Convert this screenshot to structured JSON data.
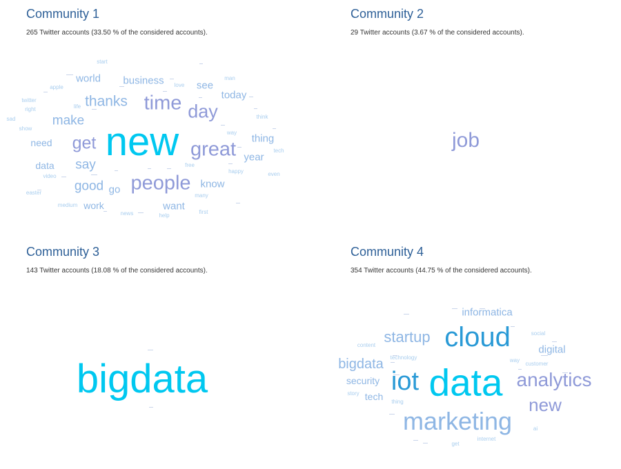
{
  "communities": [
    {
      "title": "Community 1",
      "stats": "265 Twitter accounts (33.50 % of the considered accounts).",
      "words": [
        {
          "t": "new",
          "c": "#00c8f0"
        },
        {
          "t": "time",
          "c": "#8f9ad8"
        },
        {
          "t": "great",
          "c": "#8f9ad8"
        },
        {
          "t": "people",
          "c": "#8f9ad8"
        },
        {
          "t": "day",
          "c": "#8f9ad8"
        },
        {
          "t": "get",
          "c": "#8f9ad8"
        },
        {
          "t": "thanks",
          "c": "#8eb6e4"
        },
        {
          "t": "make",
          "c": "#8eb6e4"
        },
        {
          "t": "say",
          "c": "#8eb6e4"
        },
        {
          "t": "good",
          "c": "#8eb6e4"
        },
        {
          "t": "business",
          "c": "#8eb6e4"
        },
        {
          "t": "world",
          "c": "#8eb6e4"
        },
        {
          "t": "see",
          "c": "#8eb6e4"
        },
        {
          "t": "today",
          "c": "#8eb6e4"
        },
        {
          "t": "thing",
          "c": "#8eb6e4"
        },
        {
          "t": "year",
          "c": "#8eb6e4"
        },
        {
          "t": "know",
          "c": "#8eb6e4"
        },
        {
          "t": "want",
          "c": "#8eb6e4"
        },
        {
          "t": "need",
          "c": "#8eb6e4"
        },
        {
          "t": "data",
          "c": "#8eb6e4"
        },
        {
          "t": "go",
          "c": "#8eb6e4"
        },
        {
          "t": "work",
          "c": "#8eb6e4"
        },
        {
          "t": "start",
          "c": "#a8cdee"
        },
        {
          "t": "apple",
          "c": "#a8cdee"
        },
        {
          "t": "love",
          "c": "#a8cdee"
        },
        {
          "t": "man",
          "c": "#a8cdee"
        },
        {
          "t": "twitter",
          "c": "#a8cdee"
        },
        {
          "t": "right",
          "c": "#a8cdee"
        },
        {
          "t": "life",
          "c": "#a8cdee"
        },
        {
          "t": "sad",
          "c": "#a8cdee"
        },
        {
          "t": "show",
          "c": "#a8cdee"
        },
        {
          "t": "think",
          "c": "#a8cdee"
        },
        {
          "t": "way",
          "c": "#a8cdee"
        },
        {
          "t": "tech",
          "c": "#a8cdee"
        },
        {
          "t": "free",
          "c": "#a8cdee"
        },
        {
          "t": "happy",
          "c": "#a8cdee"
        },
        {
          "t": "even",
          "c": "#a8cdee"
        },
        {
          "t": "video",
          "c": "#a8cdee"
        },
        {
          "t": "easter",
          "c": "#a8cdee"
        },
        {
          "t": "many",
          "c": "#a8cdee"
        },
        {
          "t": "medium",
          "c": "#a8cdee"
        },
        {
          "t": "news",
          "c": "#a8cdee"
        },
        {
          "t": "help",
          "c": "#a8cdee"
        },
        {
          "t": "first",
          "c": "#a8cdee"
        }
      ]
    },
    {
      "title": "Community 2",
      "stats": "29 Twitter accounts (3.67 % of the considered accounts).",
      "words": [
        {
          "t": "job",
          "c": "#8f9ad8"
        }
      ]
    },
    {
      "title": "Community 3",
      "stats": "143 Twitter accounts (18.08 % of the considered accounts).",
      "words": [
        {
          "t": "bigdata",
          "c": "#00c8f0"
        }
      ]
    },
    {
      "title": "Community 4",
      "stats": "354 Twitter accounts (44.75 % of the considered accounts).",
      "words": [
        {
          "t": "data",
          "c": "#00c8f0"
        },
        {
          "t": "cloud",
          "c": "#2a9ad6"
        },
        {
          "t": "iot",
          "c": "#2a9ad6"
        },
        {
          "t": "marketing",
          "c": "#8eb6e4"
        },
        {
          "t": "analytics",
          "c": "#8f9ad8"
        },
        {
          "t": "new",
          "c": "#8f9ad8"
        },
        {
          "t": "startup",
          "c": "#8eb6e4"
        },
        {
          "t": "bigdata",
          "c": "#8eb6e4"
        },
        {
          "t": "informatica",
          "c": "#8eb6e4"
        },
        {
          "t": "digital",
          "c": "#8eb6e4"
        },
        {
          "t": "security",
          "c": "#8eb6e4"
        },
        {
          "t": "tech",
          "c": "#8eb6e4"
        },
        {
          "t": "content",
          "c": "#a8cdee"
        },
        {
          "t": "technology",
          "c": "#a8cdee"
        },
        {
          "t": "social",
          "c": "#a8cdee"
        },
        {
          "t": "way",
          "c": "#a8cdee"
        },
        {
          "t": "customer",
          "c": "#a8cdee"
        },
        {
          "t": "story",
          "c": "#a8cdee"
        },
        {
          "t": "thing",
          "c": "#a8cdee"
        },
        {
          "t": "ai",
          "c": "#a8cdee"
        },
        {
          "t": "get",
          "c": "#a8cdee"
        },
        {
          "t": "internet",
          "c": "#a8cdee"
        }
      ]
    }
  ]
}
